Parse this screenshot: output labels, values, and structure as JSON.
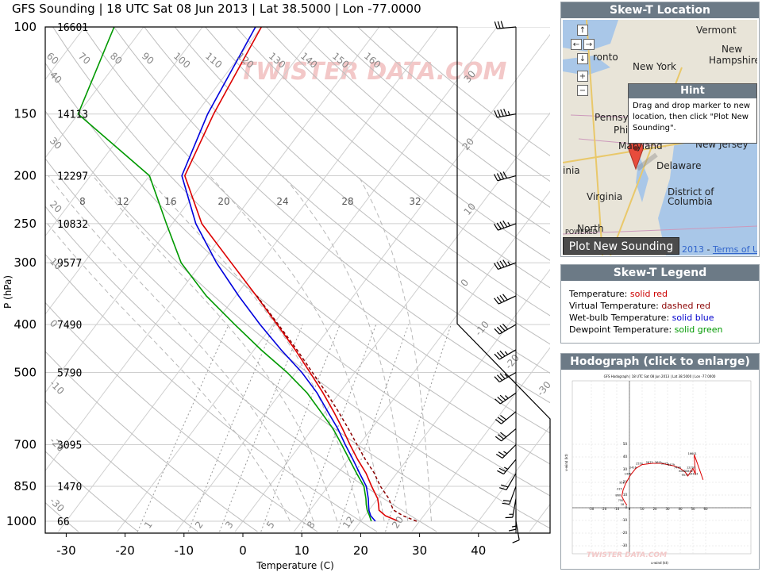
{
  "title": "GFS Sounding | 18 UTC Sat 08 Jun 2013 | Lat 38.5000 | Lon -77.0000",
  "watermark": "TWISTER DATA.COM",
  "chart_data": {
    "type": "line",
    "title": "GFS Sounding | 18 UTC Sat 08 Jun 2013 | Lat 38.5000 | Lon -77.0000",
    "xlabel": "Temperature (C)",
    "ylabel": "P (hPa)",
    "x_ticks": [
      -30,
      -20,
      -10,
      0,
      10,
      20,
      30,
      40
    ],
    "y_log_scale": true,
    "ylim": [
      1000,
      100
    ],
    "pressure_levels": [
      {
        "p": 100,
        "height": "16601"
      },
      {
        "p": 150,
        "height": "14113"
      },
      {
        "p": 200,
        "height": "12297"
      },
      {
        "p": 250,
        "height": "10832"
      },
      {
        "p": 300,
        "height": "9577"
      },
      {
        "p": 400,
        "height": "7490"
      },
      {
        "p": 500,
        "height": "5790"
      },
      {
        "p": 700,
        "height": "3095"
      },
      {
        "p": 850,
        "height": "1470"
      },
      {
        "p": 1000,
        "height": "66"
      }
    ],
    "dry_adiabat_labels": [
      "60",
      "70",
      "80",
      "90",
      "100",
      "110",
      "120",
      "130",
      "140",
      "150",
      "160"
    ],
    "dry_adiabat_side_labels": [
      "40",
      "30",
      "20",
      "10",
      "0",
      "-10",
      "-20",
      "-30"
    ],
    "moist_adiabat_labels": [
      "8",
      "12",
      "16",
      "20",
      "24",
      "28",
      "32"
    ],
    "moist_adiabat_right_labels": [
      "30",
      "20",
      "10",
      "0",
      "-10",
      "-20",
      "-30"
    ],
    "mixing_ratio_labels": [
      "1",
      "2",
      "3",
      "5",
      "8",
      "12",
      "20"
    ],
    "series": [
      {
        "name": "Temperature",
        "color": "#dd0000",
        "style": "solid",
        "p": [
          1000,
          975,
          950,
          925,
          900,
          850,
          800,
          750,
          700,
          650,
          600,
          550,
          500,
          450,
          400,
          350,
          300,
          250,
          200,
          150,
          100
        ],
        "t": [
          26.4,
          23.5,
          21.7,
          20.9,
          20.0,
          17.4,
          14.8,
          11.6,
          8.4,
          5.1,
          1.4,
          -2.8,
          -7.6,
          -13.0,
          -19.3,
          -26.5,
          -35.0,
          -45.0,
          -54.0,
          -57.0,
          -60.0
        ]
      },
      {
        "name": "Virtual Temperature",
        "color": "#8b0000",
        "style": "dashed",
        "p": [
          1000,
          975,
          950,
          925,
          900,
          850,
          800,
          750,
          700,
          650,
          600,
          550,
          500,
          450,
          400,
          350
        ],
        "t": [
          29.5,
          26.5,
          24.2,
          23.0,
          21.9,
          18.9,
          16.2,
          12.9,
          9.6,
          6.1,
          2.2,
          -2.2,
          -7.2,
          -12.7,
          -19.1,
          -26.4
        ]
      },
      {
        "name": "Wet-bulb Temperature",
        "color": "#0000dd",
        "style": "solid",
        "p": [
          1000,
          975,
          950,
          925,
          900,
          850,
          800,
          750,
          700,
          650,
          600,
          550,
          500,
          450,
          400,
          350,
          300,
          250,
          200,
          150,
          100
        ],
        "t": [
          22.5,
          21.0,
          20.0,
          19.2,
          18.4,
          16.5,
          13.7,
          10.8,
          7.6,
          4.3,
          0.4,
          -3.8,
          -9.0,
          -15.4,
          -22.2,
          -29.5,
          -37.5,
          -46.0,
          -54.5,
          -58.0,
          -61.0
        ]
      },
      {
        "name": "Dewpoint Temperature",
        "color": "#009900",
        "style": "solid",
        "p": [
          1000,
          975,
          950,
          925,
          900,
          850,
          800,
          750,
          700,
          650,
          600,
          550,
          500,
          450,
          400,
          350,
          300,
          250,
          200,
          150,
          100
        ],
        "t": [
          21.8,
          20.8,
          19.7,
          18.8,
          18.0,
          16.1,
          13.2,
          10.2,
          7.0,
          3.5,
          -0.8,
          -5.5,
          -11.5,
          -18.8,
          -26.5,
          -35.0,
          -43.5,
          -51.0,
          -60.0,
          -80.0,
          -85.0
        ]
      }
    ],
    "winds": [
      {
        "p": 100,
        "dir": 265,
        "spd": 30
      },
      {
        "p": 150,
        "dir": 260,
        "spd": 45
      },
      {
        "p": 200,
        "dir": 255,
        "spd": 40
      },
      {
        "p": 250,
        "dir": 250,
        "spd": 45
      },
      {
        "p": 300,
        "dir": 250,
        "spd": 45
      },
      {
        "p": 350,
        "dir": 245,
        "spd": 40
      },
      {
        "p": 400,
        "dir": 240,
        "spd": 40
      },
      {
        "p": 450,
        "dir": 240,
        "spd": 35
      },
      {
        "p": 500,
        "dir": 240,
        "spd": 35
      },
      {
        "p": 550,
        "dir": 235,
        "spd": 35
      },
      {
        "p": 600,
        "dir": 230,
        "spd": 30
      },
      {
        "p": 650,
        "dir": 230,
        "spd": 30
      },
      {
        "p": 700,
        "dir": 225,
        "spd": 25
      },
      {
        "p": 750,
        "dir": 220,
        "spd": 25
      },
      {
        "p": 800,
        "dir": 210,
        "spd": 20
      },
      {
        "p": 850,
        "dir": 200,
        "spd": 20
      },
      {
        "p": 900,
        "dir": 190,
        "spd": 15
      },
      {
        "p": 950,
        "dir": 180,
        "spd": 15
      },
      {
        "p": 1000,
        "dir": 170,
        "spd": 10
      }
    ]
  },
  "location_panel": {
    "header": "Skew-T Location",
    "nav": {
      "up": "↑",
      "left": "←",
      "right": "→",
      "down": "↓",
      "zoom_in": "+",
      "zoom_out": "−"
    },
    "map_labels": [
      "Vermont",
      "New",
      "Hampshire",
      "New York",
      "Pennsyl",
      "Philadelphia",
      "Maryland",
      "New Jersey",
      "Delaware",
      "District of",
      "Columbia",
      "Virginia",
      "North",
      "inia",
      "ronto"
    ],
    "hint": {
      "header": "Hint",
      "text": "Drag and drop marker to new location, then click \"Plot New Sounding\"."
    },
    "plot_button": "Plot New Sounding",
    "year": "2013",
    "terms": "Terms of Use",
    "powered": "POWERED"
  },
  "legend_panel": {
    "header": "Skew-T Legend",
    "items": [
      {
        "label": "Temperature:",
        "value": "solid red"
      },
      {
        "label": "Virtual Temperature:",
        "value": "dashed red"
      },
      {
        "label": "Wet-bulb Temperature:",
        "value": "solid blue"
      },
      {
        "label": "Dewpoint Temperature:",
        "value": "solid green"
      }
    ]
  },
  "hodograph_panel": {
    "header": "Hodograph (click to enlarge)",
    "title": "GFS Hodograph | 18 UTC Sat 08 Jun 2013 | Lat 38.5000 | Lon -77.0000",
    "xlabel": "u-wind (kt)",
    "ylabel": "v-wind (kt)",
    "x_ticks": [
      "-30",
      "-20",
      "-10",
      "0",
      "10",
      "20",
      "30",
      "40",
      "50",
      "60"
    ],
    "y_ticks": [
      "50",
      "40",
      "30",
      "20",
      "10",
      "0",
      "-10",
      "-20",
      "-30"
    ],
    "u": [
      -2,
      -4,
      -6,
      -5,
      -3,
      1,
      5,
      10,
      18,
      25,
      30,
      35,
      40,
      44,
      46,
      48,
      50,
      52,
      51,
      58
    ],
    "v": [
      2,
      5,
      9,
      14,
      19,
      26,
      31,
      34,
      35,
      35,
      34,
      33,
      31,
      28,
      25,
      28,
      31,
      26,
      42,
      22
    ],
    "point_labels": [
      "18",
      "750",
      "860",
      "315",
      "951",
      "1440",
      "2416",
      "2550",
      "2672",
      "3611",
      "5375",
      "6479",
      "7490",
      "8491",
      "9577",
      "10832",
      "12297",
      "14113",
      "16601"
    ]
  }
}
